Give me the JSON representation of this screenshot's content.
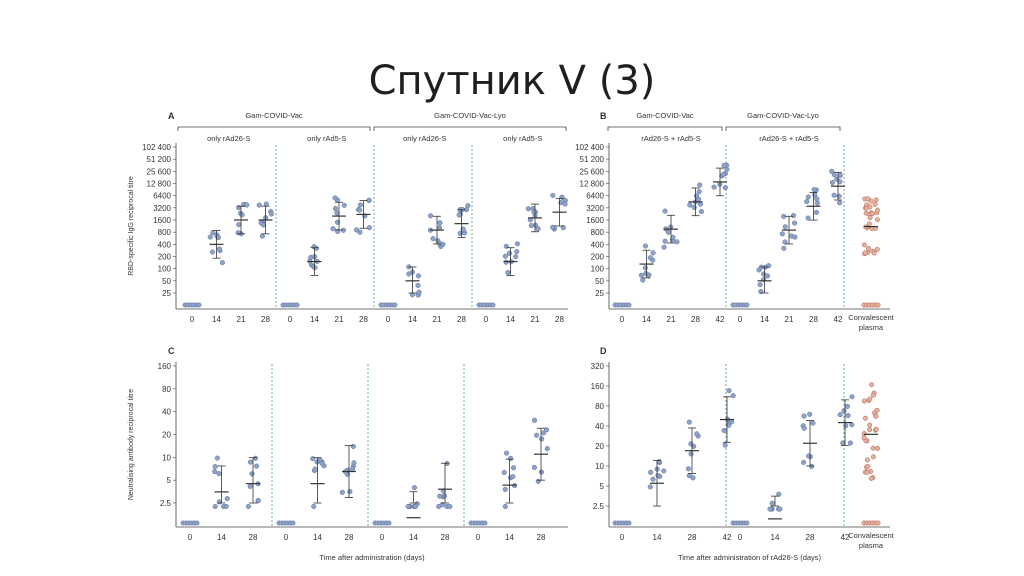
{
  "slide": {
    "title": "Спутник V (3)"
  },
  "colors": {
    "point": "#8fa3c9",
    "point_stroke": "#5b6f9a",
    "plasma_fill": "#e3b3a3",
    "plasma_stroke": "#b4583f",
    "axis": "#444444",
    "divider": "#3f9a8c",
    "whisker": "#333333"
  },
  "chart_data": [
    {
      "panel": "A",
      "type": "scatter",
      "ylabel": "RBD-specific IgG reciprocal titre",
      "yticks": [
        "102 400",
        "51 200",
        "25 600",
        "12 800",
        "6400",
        "3200",
        "1600",
        "800",
        "400",
        "200",
        "100",
        "50",
        "25"
      ],
      "ylim_labels": [
        "25",
        "102 400"
      ],
      "y_scale": "log2",
      "headers": [
        {
          "label": "Gam-COVID-Vac",
          "span": [
            0,
            1
          ]
        },
        {
          "label": "Gam-COVID-Vac-Lyo",
          "span": [
            2,
            3
          ]
        }
      ],
      "groups": [
        {
          "name": "only rAd26-S",
          "days": [
            "0",
            "14",
            "21",
            "28"
          ],
          "gmt": [
            null,
            400,
            1600,
            1600
          ]
        },
        {
          "name": "only rAd5-S",
          "days": [
            "0",
            "14",
            "21",
            "28"
          ],
          "gmt": [
            null,
            150,
            2000,
            2200
          ]
        },
        {
          "name": "only rAd26-S",
          "days": [
            "0",
            "14",
            "21",
            "28"
          ],
          "gmt": [
            null,
            50,
            900,
            1300
          ]
        },
        {
          "name": "only rAd5-S",
          "days": [
            "0",
            "14",
            "21",
            "28"
          ],
          "gmt": [
            null,
            150,
            1800,
            2500
          ]
        }
      ]
    },
    {
      "panel": "B",
      "type": "scatter",
      "yticks": [
        "102 400",
        "51 200",
        "25 600",
        "12 800",
        "6400",
        "3200",
        "1600",
        "800",
        "400",
        "200",
        "100",
        "50",
        "25"
      ],
      "ylim_labels": [
        "25",
        "102 400"
      ],
      "y_scale": "log2",
      "headers": [
        {
          "label": "Gam-COVID-Vac",
          "span": [
            0,
            0
          ]
        },
        {
          "label": "Gam-COVID-Vac-Lyo",
          "span": [
            1,
            1
          ]
        }
      ],
      "groups": [
        {
          "name": "rAd26-S + rAd5-S",
          "days": [
            "0",
            "14",
            "21",
            "28",
            "42"
          ],
          "gmt": [
            null,
            130,
            950,
            4500,
            14000
          ]
        },
        {
          "name": "rAd26-S + rAd5-S",
          "days": [
            "0",
            "14",
            "21",
            "28",
            "42"
          ],
          "gmt": [
            null,
            50,
            900,
            3500,
            11000
          ]
        }
      ],
      "plasma": {
        "label": "Convalescent plasma",
        "gmt": 1100
      }
    },
    {
      "panel": "C",
      "type": "scatter",
      "ylabel": "Neutralising antibody reciprocal titre",
      "yticks": [
        "160",
        "80",
        "40",
        "20",
        "10",
        "5",
        "2.5"
      ],
      "y_scale": "log2",
      "xlabel": "Time after administration (days)",
      "groups": [
        {
          "days": [
            "0",
            "14",
            "28"
          ],
          "gmt": [
            null,
            3.5,
            4.5
          ]
        },
        {
          "days": [
            "0",
            "14",
            "28"
          ],
          "gmt": [
            null,
            4.5,
            6.5
          ]
        },
        {
          "days": [
            "0",
            "14",
            "28"
          ],
          "gmt": [
            null,
            1.6,
            3.8
          ]
        },
        {
          "days": [
            "0",
            "14",
            "28"
          ],
          "gmt": [
            null,
            4.3,
            11
          ]
        }
      ]
    },
    {
      "panel": "D",
      "type": "scatter",
      "yticks": [
        "320",
        "160",
        "80",
        "40",
        "20",
        "10",
        "5",
        "2.5"
      ],
      "y_scale": "log2",
      "xlabel": "Time after administration of rAd26-S (days)",
      "groups": [
        {
          "days": [
            "0",
            "14",
            "28",
            "42"
          ],
          "gmt": [
            null,
            5.5,
            17,
            50
          ]
        },
        {
          "days": [
            "0",
            "14",
            "28",
            "42"
          ],
          "gmt": [
            null,
            1.6,
            22,
            45
          ]
        }
      ],
      "plasma": {
        "label": "Convalescent plasma",
        "gmt": 30
      }
    }
  ]
}
